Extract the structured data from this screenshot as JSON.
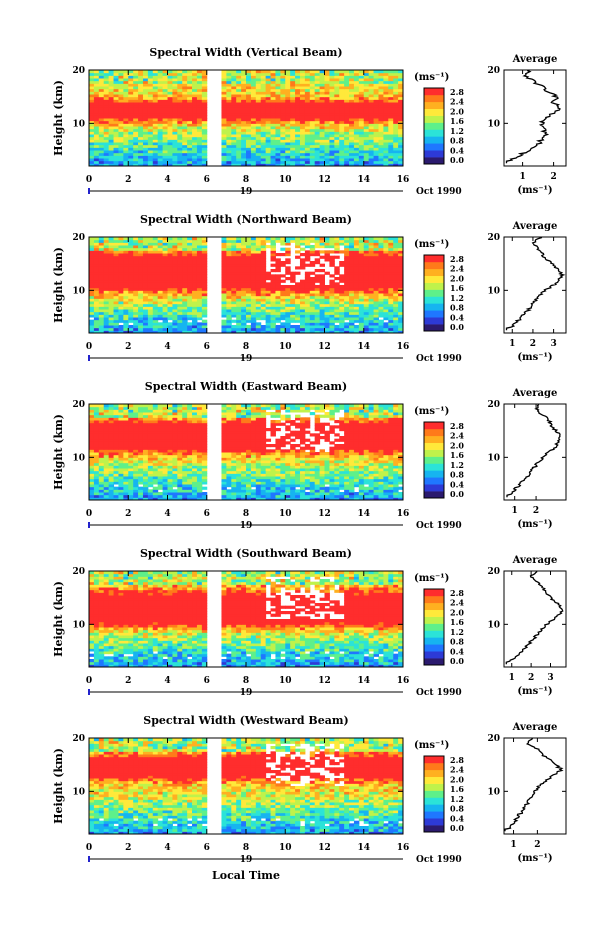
{
  "chart_data": [
    {
      "type": "heatmap",
      "title": "Spectral Width (Vertical Beam)",
      "ylabel": "Height (km)",
      "xlim": [
        0,
        16
      ],
      "ylim": [
        2,
        20
      ],
      "x_ticks": [
        "0",
        "2",
        "4",
        "6",
        "8",
        "10",
        "12",
        "14",
        "16"
      ],
      "y_ticks": [
        "10",
        "20"
      ],
      "date_label": "19",
      "date_suffix": "Oct 1990",
      "gap": [
        5.95,
        6.75
      ],
      "colorbar": {
        "unit": "(ms⁻¹)",
        "ticks": [
          "0.0",
          "0.4",
          "0.8",
          "1.2",
          "1.6",
          "2.0",
          "2.4",
          "2.8"
        ]
      },
      "band": {
        "center": 12.5,
        "width": 3.5,
        "strength": 0.75
      },
      "average_profile": {
        "title": "Average",
        "xlabel": "(ms⁻¹)",
        "xlim": [
          0.4,
          2.4
        ],
        "x_ticks": [
          "1",
          "2"
        ],
        "y_ticks": [
          "10",
          "20"
        ],
        "height_km": [
          3,
          4,
          6,
          8,
          10,
          11,
          12,
          13,
          14,
          15,
          16,
          17,
          18,
          19,
          20
        ],
        "width": [
          0.6,
          0.9,
          1.5,
          1.75,
          1.6,
          1.8,
          2.0,
          2.2,
          1.95,
          2.1,
          1.8,
          1.6,
          1.3,
          1.1,
          1.2
        ]
      }
    },
    {
      "type": "heatmap",
      "title": "Spectral Width (Northward Beam)",
      "ylabel": "Height (km)",
      "xlim": [
        0,
        16
      ],
      "ylim": [
        2,
        20
      ],
      "x_ticks": [
        "0",
        "2",
        "4",
        "6",
        "8",
        "10",
        "12",
        "14",
        "16"
      ],
      "y_ticks": [
        "10",
        "20"
      ],
      "date_label": "19",
      "date_suffix": "Oct 1990",
      "gap": [
        5.95,
        6.75
      ],
      "colorbar": {
        "unit": "(ms⁻¹)",
        "ticks": [
          "0.0",
          "0.4",
          "0.8",
          "1.2",
          "1.6",
          "2.0",
          "2.4",
          "2.8"
        ]
      },
      "band": {
        "center": 13.5,
        "width": 6,
        "strength": 1.0
      },
      "average_profile": {
        "title": "Average",
        "xlabel": "(ms⁻¹)",
        "xlim": [
          0.6,
          3.6
        ],
        "x_ticks": [
          "1",
          "2",
          "3"
        ],
        "y_ticks": [
          "10",
          "20"
        ],
        "height_km": [
          3,
          4,
          6,
          8,
          10,
          11,
          12,
          13,
          14,
          15,
          16,
          17,
          18,
          19,
          20
        ],
        "width": [
          0.9,
          1.2,
          1.7,
          2.1,
          2.6,
          3.0,
          3.3,
          3.4,
          3.2,
          2.9,
          2.6,
          2.4,
          2.2,
          2.0,
          2.4
        ]
      }
    },
    {
      "type": "heatmap",
      "title": "Spectral Width (Eastward Beam)",
      "ylabel": "Height (km)",
      "xlim": [
        0,
        16
      ],
      "ylim": [
        2,
        20
      ],
      "x_ticks": [
        "0",
        "2",
        "4",
        "6",
        "8",
        "10",
        "12",
        "14",
        "16"
      ],
      "y_ticks": [
        "10",
        "20"
      ],
      "date_label": "19",
      "date_suffix": "Oct 1990",
      "gap": [
        5.95,
        6.75
      ],
      "colorbar": {
        "unit": "(ms⁻¹)",
        "ticks": [
          "0.0",
          "0.4",
          "0.8",
          "1.2",
          "1.6",
          "2.0",
          "2.4",
          "2.8"
        ]
      },
      "band": {
        "center": 14,
        "width": 5,
        "strength": 0.95
      },
      "average_profile": {
        "title": "Average",
        "xlabel": "(ms⁻¹)",
        "xlim": [
          0.5,
          3.4
        ],
        "x_ticks": [
          "1",
          "2"
        ],
        "y_ticks": [
          "10",
          "20"
        ],
        "height_km": [
          3,
          4,
          6,
          8,
          10,
          11,
          12,
          13,
          14,
          15,
          16,
          17,
          18,
          19,
          20
        ],
        "width": [
          0.8,
          1.0,
          1.5,
          1.9,
          2.3,
          2.6,
          2.9,
          3.0,
          3.2,
          2.9,
          2.7,
          2.6,
          2.3,
          2.0,
          2.2
        ]
      }
    },
    {
      "type": "heatmap",
      "title": "Spectral Width (Southward Beam)",
      "ylabel": "Height (km)",
      "xlim": [
        0,
        16
      ],
      "ylim": [
        2,
        20
      ],
      "x_ticks": [
        "0",
        "2",
        "4",
        "6",
        "8",
        "10",
        "12",
        "14",
        "16"
      ],
      "y_ticks": [
        "10",
        "20"
      ],
      "date_label": "19",
      "date_suffix": "Oct 1990",
      "gap": [
        5.95,
        6.75
      ],
      "colorbar": {
        "unit": "(ms⁻¹)",
        "ticks": [
          "0.0",
          "0.4",
          "0.8",
          "1.2",
          "1.6",
          "2.0",
          "2.4",
          "2.8"
        ]
      },
      "band": {
        "center": 13,
        "width": 5.5,
        "strength": 1.0
      },
      "average_profile": {
        "title": "Average",
        "xlabel": "(ms⁻¹)",
        "xlim": [
          0.6,
          3.8
        ],
        "x_ticks": [
          "1",
          "2",
          "3"
        ],
        "y_ticks": [
          "10",
          "20"
        ],
        "height_km": [
          3,
          4,
          6,
          8,
          10,
          11,
          12,
          13,
          14,
          15,
          16,
          17,
          18,
          19,
          20
        ],
        "width": [
          0.9,
          1.2,
          1.8,
          2.3,
          2.8,
          3.2,
          3.5,
          3.6,
          3.3,
          3.0,
          2.8,
          2.6,
          2.3,
          2.0,
          2.3
        ]
      }
    },
    {
      "type": "heatmap",
      "title": "Spectral Width (Westward Beam)",
      "ylabel": "Height (km)",
      "xlim": [
        0,
        16
      ],
      "ylim": [
        2,
        20
      ],
      "x_ticks": [
        "0",
        "2",
        "4",
        "6",
        "8",
        "10",
        "12",
        "14",
        "16"
      ],
      "y_ticks": [
        "10",
        "20"
      ],
      "date_label": "19",
      "date_suffix": "Oct 1990",
      "gap": [
        5.95,
        6.75
      ],
      "colorbar": {
        "unit": "(ms⁻¹)",
        "ticks": [
          "0.0",
          "0.4",
          "0.8",
          "1.2",
          "1.6",
          "2.0",
          "2.4",
          "2.8"
        ]
      },
      "band": {
        "center": 14.5,
        "width": 4,
        "strength": 0.9
      },
      "average_profile": {
        "title": "Average",
        "xlabel": "(ms⁻¹)",
        "xlim": [
          0.6,
          3.2
        ],
        "x_ticks": [
          "1",
          "2"
        ],
        "y_ticks": [
          "10",
          "20"
        ],
        "height_km": [
          3,
          4,
          6,
          8,
          10,
          11,
          12,
          13,
          14,
          15,
          16,
          17,
          18,
          19,
          20
        ],
        "width": [
          0.8,
          1.0,
          1.3,
          1.6,
          1.9,
          2.1,
          2.4,
          2.7,
          3.0,
          2.8,
          2.5,
          2.2,
          2.0,
          1.6,
          1.8
        ]
      }
    }
  ],
  "figure": {
    "xlabel": "Local Time"
  },
  "colors": {
    "palette": [
      "#2b1a6e",
      "#2d3ad6",
      "#1f77ff",
      "#16b4f0",
      "#2be3d8",
      "#5ef08a",
      "#bff24b",
      "#ffe93a",
      "#ffb020",
      "#ff7a1a",
      "#ff2d2d"
    ]
  }
}
